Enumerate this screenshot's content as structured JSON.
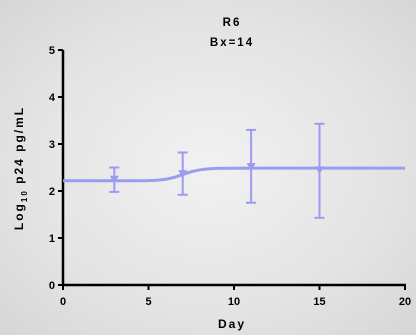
{
  "chart_data": {
    "type": "line",
    "title": "R6",
    "subtitle": "Bx=14",
    "xlabel": "Day",
    "ylabel_main": "Log",
    "ylabel_sub": "10",
    "ylabel_rest": " p24 pg/mL",
    "xlim": [
      0,
      20
    ],
    "ylim": [
      0,
      5
    ],
    "xticks": [
      0,
      5,
      10,
      15,
      20
    ],
    "yticks": [
      0,
      1,
      2,
      3,
      4,
      5
    ],
    "grid": false,
    "legend": "none",
    "color": "#9b9bf0",
    "series": [
      {
        "x": [
          3,
          7,
          11,
          15
        ],
        "y": [
          2.25,
          2.37,
          2.52,
          2.45
        ],
        "err_low": [
          1.98,
          1.92,
          1.75,
          1.43
        ],
        "err_high": [
          2.5,
          2.82,
          3.3,
          3.43
        ]
      }
    ],
    "fit": {
      "x": [
        0,
        4,
        5,
        5.5,
        6,
        6.5,
        7,
        7.5,
        8,
        8.5,
        9,
        10,
        12,
        15,
        20
      ],
      "y": [
        2.22,
        2.22,
        2.222,
        2.23,
        2.25,
        2.29,
        2.35,
        2.41,
        2.45,
        2.47,
        2.48,
        2.485,
        2.487,
        2.487,
        2.487
      ]
    }
  }
}
